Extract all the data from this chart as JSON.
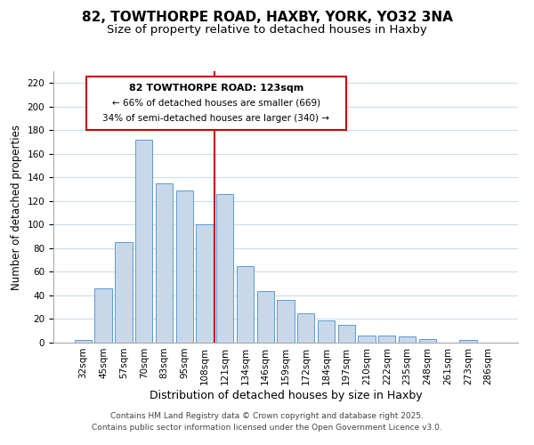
{
  "title": "82, TOWTHORPE ROAD, HAXBY, YORK, YO32 3NA",
  "subtitle": "Size of property relative to detached houses in Haxby",
  "xlabel": "Distribution of detached houses by size in Haxby",
  "ylabel": "Number of detached properties",
  "bar_labels": [
    "32sqm",
    "45sqm",
    "57sqm",
    "70sqm",
    "83sqm",
    "95sqm",
    "108sqm",
    "121sqm",
    "134sqm",
    "146sqm",
    "159sqm",
    "172sqm",
    "184sqm",
    "197sqm",
    "210sqm",
    "222sqm",
    "235sqm",
    "248sqm",
    "261sqm",
    "273sqm",
    "286sqm"
  ],
  "bar_values": [
    2,
    46,
    85,
    172,
    135,
    129,
    100,
    126,
    65,
    44,
    36,
    25,
    19,
    15,
    6,
    6,
    5,
    3,
    0,
    2,
    0
  ],
  "bar_color": "#c8d8e8",
  "bar_edge_color": "#5b9bd5",
  "highlight_index": 7,
  "vline_color": "#cc0000",
  "ylim": [
    0,
    230
  ],
  "yticks": [
    0,
    20,
    40,
    60,
    80,
    100,
    120,
    140,
    160,
    180,
    200,
    220
  ],
  "annotation_title": "82 TOWTHORPE ROAD: 123sqm",
  "annotation_line1": "← 66% of detached houses are smaller (669)",
  "annotation_line2": "34% of semi-detached houses are larger (340) →",
  "footer1": "Contains HM Land Registry data © Crown copyright and database right 2025.",
  "footer2": "Contains public sector information licensed under the Open Government Licence v3.0.",
  "bg_color": "#ffffff",
  "grid_color": "#ccddee",
  "title_fontsize": 11,
  "subtitle_fontsize": 9.5,
  "xlabel_fontsize": 9,
  "ylabel_fontsize": 8.5,
  "tick_fontsize": 7.5,
  "footer_fontsize": 6.5
}
